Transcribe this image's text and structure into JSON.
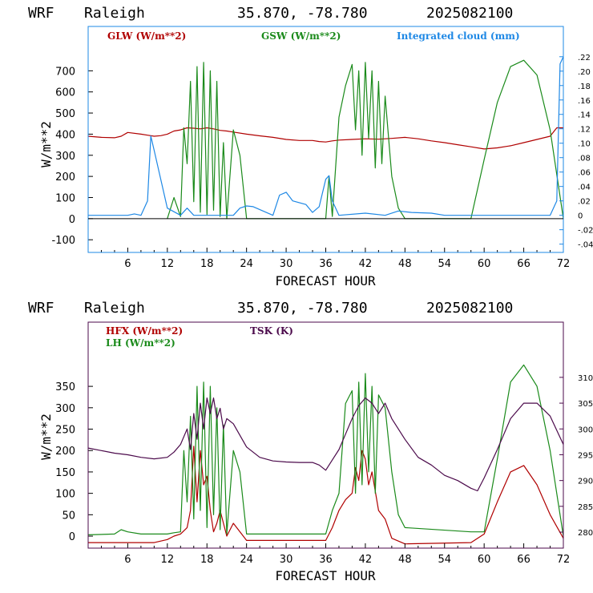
{
  "colors": {
    "red": "#b00000",
    "green": "#1a8a1a",
    "blue": "#1e88e5",
    "purple": "#4b0a4b",
    "axis_top": "#1e88e5",
    "axis_bottom": "#4b0a4b"
  },
  "chart_data": [
    {
      "type": "line",
      "header": {
        "model": "WRF",
        "location": "Raleigh",
        "coords": "35.870, -78.780",
        "init": "2025082100"
      },
      "xlabel": "FORECAST HOUR",
      "ylabel": "W/m**2",
      "xlim": [
        0,
        72
      ],
      "ylim": [
        -160,
        910
      ],
      "yticks": [
        "700",
        "600",
        "500",
        "400",
        "300",
        "200",
        "100",
        "0",
        "-100"
      ],
      "ytick_values": [
        700,
        600,
        500,
        400,
        300,
        200,
        100,
        0,
        -100
      ],
      "xticks": [
        "6",
        "12",
        "18",
        "24",
        "30",
        "36",
        "42",
        "48",
        "54",
        "60",
        "66",
        "72"
      ],
      "xtick_values": [
        6,
        12,
        18,
        24,
        30,
        36,
        42,
        48,
        54,
        60,
        66,
        72
      ],
      "y2lim": [
        -0.0515,
        0.262
      ],
      "y2ticks": [
        ".22",
        ".20",
        ".18",
        ".16",
        ".14",
        ".12",
        ".10",
        ".08",
        ".06",
        ".04",
        ".02",
        "0",
        "-.02",
        "-.04"
      ],
      "y2tick_values": [
        0.22,
        0.2,
        0.18,
        0.16,
        0.14,
        0.12,
        0.1,
        0.08,
        0.06,
        0.04,
        0.02,
        0,
        -0.02,
        -0.04
      ],
      "legend": [
        "GLW (W/m**2)",
        "GSW (W/m**2)",
        "Integrated cloud (mm)"
      ],
      "series": [
        {
          "name": "GLW (W/m**2)",
          "axis": "left",
          "color": "red",
          "x": [
            0,
            2,
            4,
            5,
            6,
            8,
            9,
            10,
            11,
            12,
            13,
            14,
            15,
            16,
            17,
            18,
            19,
            20,
            21,
            22,
            24,
            26,
            28,
            30,
            32,
            34,
            35,
            36,
            37,
            38,
            40,
            42,
            44,
            46,
            48,
            50,
            52,
            54,
            56,
            58,
            60,
            62,
            64,
            66,
            68,
            70,
            71,
            72
          ],
          "y": [
            390,
            385,
            383,
            390,
            408,
            400,
            395,
            390,
            393,
            400,
            415,
            420,
            430,
            428,
            425,
            430,
            425,
            418,
            415,
            410,
            400,
            392,
            385,
            375,
            370,
            370,
            365,
            363,
            368,
            372,
            375,
            378,
            376,
            380,
            385,
            378,
            368,
            360,
            350,
            340,
            330,
            335,
            345,
            360,
            375,
            390,
            430,
            430
          ]
        },
        {
          "name": "GSW (W/m**2)",
          "axis": "left",
          "color": "green",
          "x": [
            12,
            13,
            14,
            14.5,
            15,
            15.5,
            16,
            16.5,
            17,
            17.5,
            18,
            18.5,
            19,
            19.5,
            20,
            20.5,
            21,
            22,
            23,
            24,
            36,
            36.5,
            37,
            38,
            39,
            40,
            40.5,
            41,
            41.5,
            42,
            42.5,
            43,
            43.5,
            44,
            44.5,
            45,
            46,
            47,
            48,
            58,
            60,
            62,
            64,
            66,
            68,
            70,
            72
          ],
          "y": [
            0,
            100,
            10,
            430,
            260,
            650,
            80,
            720,
            30,
            740,
            20,
            700,
            40,
            650,
            10,
            360,
            0,
            420,
            300,
            0,
            0,
            200,
            10,
            480,
            630,
            730,
            420,
            700,
            300,
            740,
            380,
            700,
            240,
            650,
            260,
            580,
            200,
            50,
            0,
            0,
            280,
            550,
            720,
            750,
            680,
            420,
            0
          ]
        },
        {
          "name": "Integrated cloud (mm)",
          "axis": "right",
          "color": "blue",
          "x": [
            0,
            6,
            7,
            8,
            9,
            9.5,
            10,
            11,
            12,
            14,
            15,
            16,
            22,
            23,
            24,
            25,
            28,
            29,
            30,
            31,
            33,
            34,
            35,
            36,
            36.5,
            37,
            38,
            42,
            45,
            47,
            49,
            52,
            54,
            56,
            66,
            70,
            71,
            71.5,
            72
          ],
          "y": [
            0,
            0,
            0.002,
            0,
            0.02,
            0.11,
            0.09,
            0.05,
            0.01,
            0,
            0.01,
            0,
            0,
            0.01,
            0.013,
            0.012,
            0,
            0.028,
            0.032,
            0.02,
            0.015,
            0.004,
            0.012,
            0.05,
            0.055,
            0.02,
            0,
            0.003,
            0,
            0.006,
            0.004,
            0.003,
            0,
            0,
            0,
            0,
            0.02,
            0.21,
            0.22
          ]
        }
      ]
    },
    {
      "type": "line",
      "header": {
        "model": "WRF",
        "location": "Raleigh",
        "coords": "35.870, -78.780",
        "init": "2025082100"
      },
      "xlabel": "FORECAST HOUR",
      "ylabel": "W/m**2",
      "xlim": [
        0,
        72
      ],
      "ylim": [
        -28,
        500
      ],
      "yticks": [
        "350",
        "300",
        "250",
        "200",
        "150",
        "100",
        "50",
        "0"
      ],
      "ytick_values": [
        350,
        300,
        250,
        200,
        150,
        100,
        50,
        0
      ],
      "xticks": [
        "6",
        "12",
        "18",
        "24",
        "30",
        "36",
        "42",
        "48",
        "54",
        "60",
        "66",
        "72"
      ],
      "xtick_values": [
        6,
        12,
        18,
        24,
        30,
        36,
        42,
        48,
        54,
        60,
        66,
        72
      ],
      "y2lim": [
        276.9,
        320.7
      ],
      "y2ticks": [
        "310",
        "305",
        "300",
        "295",
        "290",
        "285",
        "280"
      ],
      "y2tick_values": [
        310,
        305,
        300,
        295,
        290,
        285,
        280
      ],
      "legend": [
        "HFX (W/m**2)",
        "LH (W/m**2)",
        "TSK (K)"
      ],
      "series": [
        {
          "name": "HFX (W/m**2)",
          "axis": "left",
          "color": "red",
          "x": [
            0,
            10,
            12,
            13,
            14,
            15,
            15.5,
            16,
            16.5,
            17,
            17.5,
            18,
            18.5,
            19,
            19.5,
            20,
            21,
            22,
            24,
            36,
            37,
            38,
            39,
            40,
            40.5,
            41,
            41.5,
            42,
            42.5,
            43,
            44,
            45,
            46,
            48,
            58,
            60,
            62,
            64,
            66,
            68,
            70,
            72
          ],
          "y": [
            -15,
            -15,
            -8,
            0,
            5,
            20,
            60,
            210,
            80,
            200,
            120,
            140,
            60,
            10,
            30,
            60,
            0,
            30,
            -10,
            -10,
            20,
            60,
            85,
            100,
            160,
            130,
            200,
            180,
            120,
            150,
            60,
            40,
            -5,
            -18,
            -15,
            5,
            80,
            150,
            165,
            120,
            50,
            -5
          ],
          "note": ""
        },
        {
          "name": "LH (W/m**2)",
          "axis": "left",
          "color": "green",
          "x": [
            0,
            4,
            5,
            6,
            8,
            10,
            12,
            13,
            14,
            14.5,
            15,
            15.5,
            16,
            16.5,
            17,
            17.5,
            18,
            18.5,
            19,
            19.5,
            20,
            20.5,
            21,
            22,
            23,
            24,
            36,
            37,
            38,
            39,
            40,
            40.5,
            41,
            41.5,
            42,
            42.5,
            43,
            43.5,
            44,
            45,
            46,
            47,
            48,
            58,
            60,
            62,
            64,
            66,
            68,
            70,
            72
          ],
          "y": [
            3,
            5,
            15,
            10,
            5,
            5,
            5,
            8,
            10,
            200,
            80,
            280,
            40,
            350,
            60,
            360,
            20,
            350,
            50,
            300,
            15,
            260,
            5,
            200,
            150,
            5,
            5,
            60,
            100,
            310,
            340,
            100,
            360,
            120,
            380,
            150,
            350,
            100,
            330,
            300,
            150,
            50,
            20,
            10,
            10,
            180,
            360,
            400,
            350,
            200,
            0
          ]
        },
        {
          "name": "TSK (K)",
          "axis": "right",
          "color": "purple",
          "x": [
            0,
            2,
            4,
            6,
            8,
            10,
            12,
            13,
            14,
            15,
            15.5,
            16,
            16.5,
            17,
            17.5,
            18,
            18.5,
            19,
            19.5,
            20,
            20.5,
            21,
            22,
            24,
            26,
            28,
            30,
            32,
            34,
            35,
            36,
            37,
            38,
            39,
            40,
            41,
            42,
            43,
            44,
            45,
            46,
            48,
            50,
            52,
            54,
            56,
            58,
            59,
            60,
            62,
            64,
            66,
            68,
            70,
            72
          ],
          "y": [
            296.3,
            295.8,
            295.3,
            295,
            294.5,
            294.2,
            294.5,
            295.5,
            297,
            300,
            296,
            303,
            298,
            305,
            300,
            306,
            303,
            306,
            302,
            304,
            300,
            302,
            301,
            296.5,
            294.5,
            293.8,
            293.6,
            293.5,
            293.5,
            293,
            292,
            294,
            296,
            299,
            302,
            304.5,
            306,
            305,
            303,
            305,
            302,
            298,
            294.5,
            293,
            291,
            290,
            288.5,
            288,
            290.5,
            296,
            302,
            305,
            305,
            302.5,
            297
          ]
        }
      ]
    }
  ]
}
